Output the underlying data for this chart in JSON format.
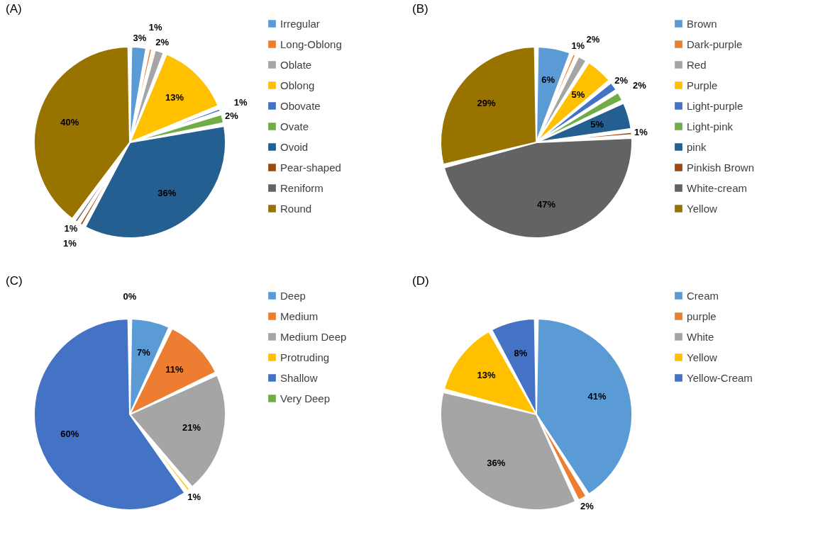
{
  "chart_data": [
    {
      "type": "pie",
      "title": "(A)",
      "legend": "right",
      "categories": [
        "Irregular",
        "Long-Oblong",
        "Oblate",
        "Oblong",
        "Obovate",
        "Ovate",
        "Ovoid",
        "Pear-shaped",
        "Reniform",
        "Round"
      ],
      "values": [
        3,
        1,
        2,
        13,
        1,
        2,
        36,
        1,
        1,
        40
      ],
      "value_labels": [
        "3%",
        "1%",
        "2%",
        "13%",
        "1%",
        "2%",
        "36%",
        "1%",
        "1%",
        "40%"
      ],
      "colors": [
        "#5b9bd5",
        "#ed7d31",
        "#a5a5a5",
        "#ffc000",
        "#4472c4",
        "#70ad47",
        "#255e91",
        "#9e480e",
        "#636363",
        "#997300"
      ]
    },
    {
      "type": "pie",
      "title": "(B)",
      "legend": "right",
      "categories": [
        "Brown",
        "Dark-purple",
        "Red",
        "Purple",
        "Light-purple",
        "Light-pink",
        "pink",
        "Pinkish Brown",
        "White-cream",
        "Yellow"
      ],
      "values": [
        6,
        1,
        2,
        5,
        2,
        2,
        5,
        1,
        47,
        29
      ],
      "value_labels": [
        "6%",
        "1%",
        "2%",
        "5%",
        "2%",
        "2%",
        "5%",
        "1%",
        "47%",
        "29%"
      ],
      "colors": [
        "#5b9bd5",
        "#ed7d31",
        "#a5a5a5",
        "#ffc000",
        "#4472c4",
        "#70ad47",
        "#255e91",
        "#9e480e",
        "#636363",
        "#997300"
      ]
    },
    {
      "type": "pie",
      "title": "(C)",
      "legend": "right",
      "categories": [
        "Deep",
        "Medium",
        "Medium Deep",
        "Protruding",
        "Shallow",
        "Very Deep"
      ],
      "values": [
        7,
        11,
        21,
        1,
        60,
        0
      ],
      "value_labels": [
        "7%",
        "11%",
        "21%",
        "1%",
        "60%",
        "0%"
      ],
      "colors": [
        "#5b9bd5",
        "#ed7d31",
        "#a5a5a5",
        "#ffc000",
        "#4472c4",
        "#70ad47"
      ]
    },
    {
      "type": "pie",
      "title": "(D)",
      "legend": "right",
      "categories": [
        "Cream",
        "purple",
        "White",
        "Yellow",
        "Yellow-Cream"
      ],
      "values": [
        41,
        2,
        36,
        13,
        8
      ],
      "value_labels": [
        "41%",
        "2%",
        "36%",
        "13%",
        "8%"
      ],
      "colors": [
        "#5b9bd5",
        "#ed7d31",
        "#a5a5a5",
        "#ffc000",
        "#4472c4"
      ]
    }
  ]
}
